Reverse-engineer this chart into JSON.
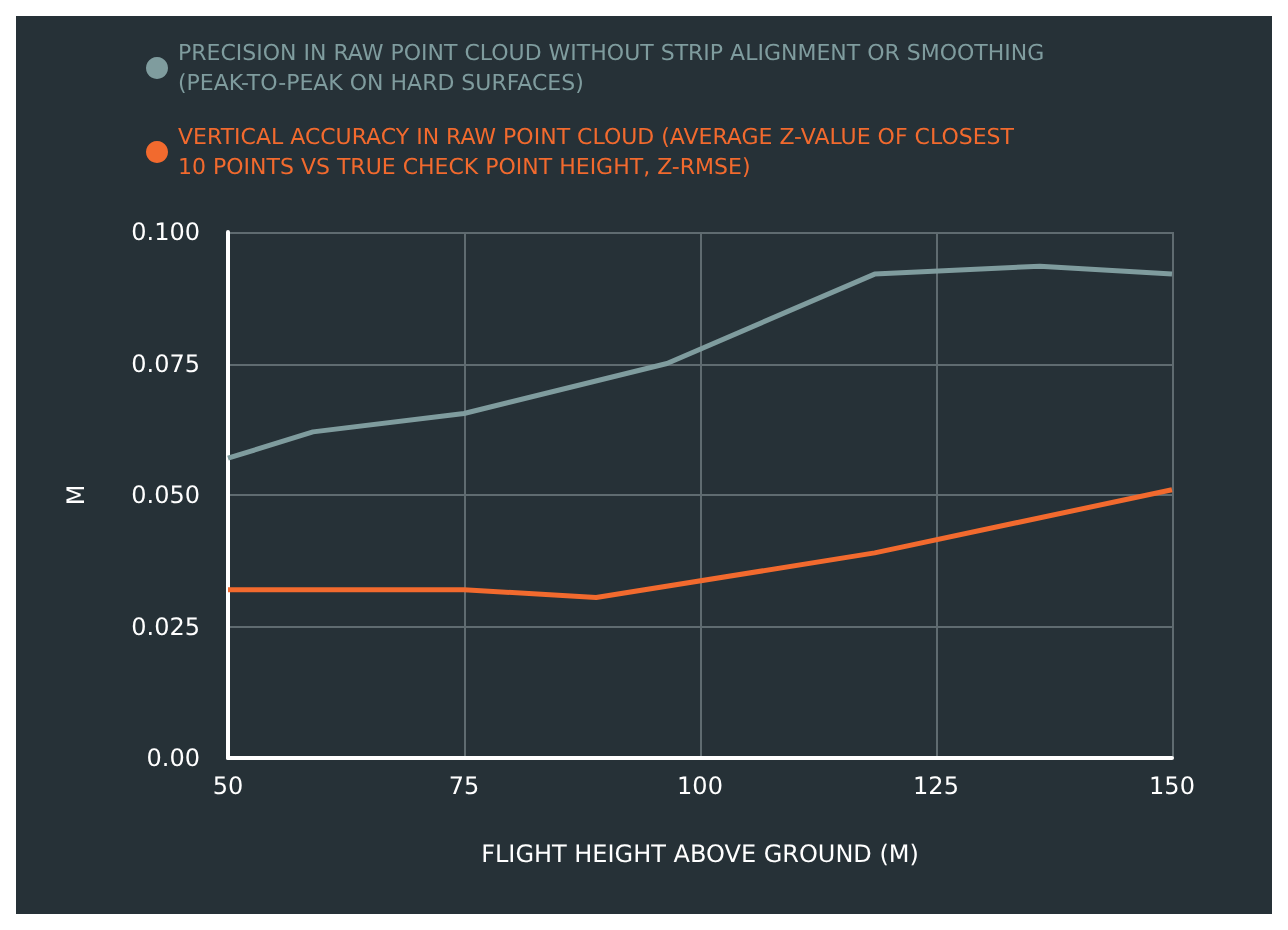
{
  "chart_data": {
    "type": "line",
    "xlabel": "FLIGHT HEIGHT ABOVE GROUND (M)",
    "ylabel": "M",
    "xlim": [
      50,
      150
    ],
    "xticks": [
      50,
      75,
      100,
      125,
      150
    ],
    "ylim": [
      0,
      0.1
    ],
    "yticks": [
      {
        "value": 0,
        "label": "0.00"
      },
      {
        "value": 0.025,
        "label": "0.025"
      },
      {
        "value": 0.05,
        "label": "0.050"
      },
      {
        "value": 0.075,
        "label": "0.075"
      },
      {
        "value": 0.1,
        "label": "0.100"
      }
    ],
    "grid": true,
    "legend": "top left",
    "marker": "none",
    "line_style": "solid",
    "series": [
      {
        "name": "PRECISION IN RAW POINT CLOUD WITHOUT STRIP ALIGNMENT OR SMOOTHING\n(PEAK-TO-PEAK ON HARD SURFACES)",
        "color": "#7f9c9e",
        "x": [
          50,
          59,
          75,
          96.5,
          118.5,
          136,
          150
        ],
        "values": [
          0.057,
          0.062,
          0.0655,
          0.075,
          0.092,
          0.0935,
          0.092
        ]
      },
      {
        "name": "VERTICAL ACCURACY IN RAW POINT CLOUD (AVERAGE Z-VALUE OF CLOSEST\n10 POINTS VS TRUE CHECK POINT HEIGHT, Z-RMSE)",
        "color": "#f26a2e",
        "x": [
          50,
          75,
          89,
          118.5,
          150
        ],
        "values": [
          0.032,
          0.032,
          0.0305,
          0.039,
          0.051
        ]
      }
    ]
  }
}
